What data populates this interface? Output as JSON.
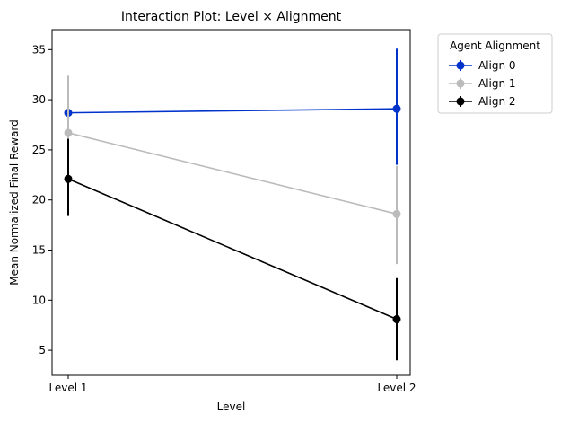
{
  "chart_data": {
    "type": "line",
    "title": "Interaction Plot: Level × Alignment",
    "xlabel": "Level",
    "ylabel": "Mean Normalized Final Reward",
    "categories": [
      "Level 1",
      "Level 2"
    ],
    "ylim": [
      2.5,
      37
    ],
    "yticks": [
      5,
      10,
      15,
      20,
      25,
      30,
      35
    ],
    "grid": false,
    "legend": {
      "title": "Agent Alignment",
      "placement": "outside-top-right"
    },
    "series": [
      {
        "name": "Align 0",
        "color": "#0033cc",
        "values": [
          28.7,
          29.1
        ],
        "err_low": [
          26.4,
          23.5
        ],
        "err_high": [
          31.2,
          35.1
        ]
      },
      {
        "name": "Align 1",
        "color": "#bbbbbb",
        "values": [
          26.7,
          18.6
        ],
        "err_low": [
          21.3,
          13.6
        ],
        "err_high": [
          32.4,
          23.4
        ]
      },
      {
        "name": "Align 2",
        "color": "#000000",
        "values": [
          22.1,
          8.1
        ],
        "err_low": [
          18.4,
          4.0
        ],
        "err_high": [
          26.1,
          12.2
        ]
      }
    ]
  }
}
